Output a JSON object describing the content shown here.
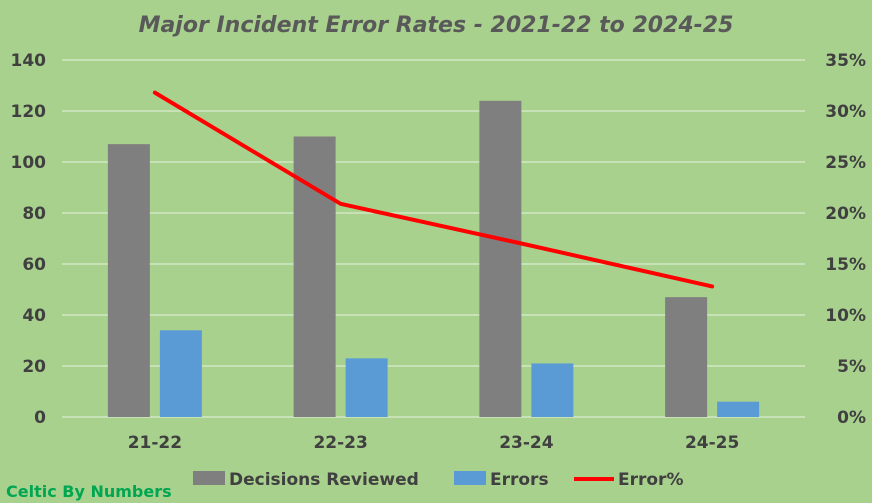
{
  "chart_data": {
    "type": "bar",
    "title": "Major Incident Error Rates - 2021-22 to 2024-25",
    "categories": [
      "21-22",
      "22-23",
      "23-24",
      "24-25"
    ],
    "series": [
      {
        "name": "Decisions Reviewed",
        "type": "bar",
        "axis": "left",
        "color": "#7f7f7f",
        "values": [
          107,
          110,
          124,
          47
        ]
      },
      {
        "name": "Errors",
        "type": "bar",
        "axis": "left",
        "color": "#5b9bd5",
        "values": [
          34,
          23,
          21,
          6
        ]
      },
      {
        "name": "Error%",
        "type": "line",
        "axis": "right",
        "color": "#ff0000",
        "values": [
          31.8,
          20.9,
          16.9,
          12.8
        ]
      }
    ],
    "y_left": {
      "min": 0,
      "max": 140,
      "ticks": [
        "0",
        "20",
        "40",
        "60",
        "80",
        "100",
        "120",
        "140"
      ]
    },
    "y_right": {
      "min": 0,
      "max": 35,
      "ticks": [
        "0%",
        "5%",
        "10%",
        "15%",
        "20%",
        "25%",
        "30%",
        "35%"
      ]
    },
    "grid": true,
    "legend": "bottom"
  },
  "watermark": "Celtic By Numbers"
}
